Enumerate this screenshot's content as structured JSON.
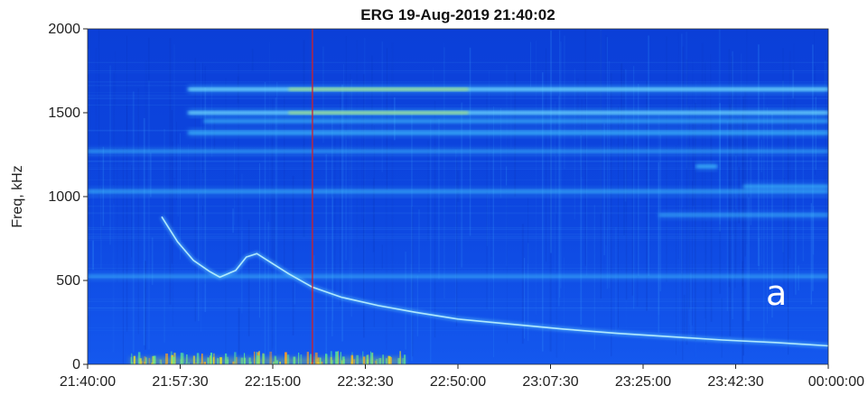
{
  "chart_data": {
    "type": "heatmap",
    "title": "ERG  19-Aug-2019 21:40:02",
    "ylabel": "Freq, kHz",
    "xlabel": "",
    "ylim": [
      0,
      2000
    ],
    "yticks": [
      "0",
      "500",
      "1000",
      "1500",
      "2000"
    ],
    "yticks_values": [
      0,
      500,
      1000,
      1500,
      2000
    ],
    "xticks": [
      "21:40:00",
      "21:57:30",
      "22:15:00",
      "22:32:30",
      "22:50:00",
      "23:07:30",
      "23:25:00",
      "23:42:30",
      "00:00:00"
    ],
    "xlim_minutes": [
      0,
      140
    ],
    "panel_label": "a",
    "marker_line_time": "22:22:30",
    "marker_line_minute": 42.5,
    "colors": {
      "background": "#0b3fd8",
      "band": "#45c8ff",
      "band_hot": "#d8ff30",
      "marker": "#d0202a"
    },
    "bands": [
      {
        "freq": 1640,
        "start_min": 19,
        "end_min": 140,
        "intensity": 0.9
      },
      {
        "freq": 1500,
        "start_min": 19,
        "end_min": 140,
        "intensity": 0.85
      },
      {
        "freq": 1450,
        "start_min": 22,
        "end_min": 140,
        "intensity": 0.6
      },
      {
        "freq": 1380,
        "start_min": 19,
        "end_min": 140,
        "intensity": 0.7
      },
      {
        "freq": 1270,
        "start_min": 0,
        "end_min": 140,
        "intensity": 0.45
      },
      {
        "freq": 1030,
        "start_min": 0,
        "end_min": 140,
        "intensity": 0.55
      },
      {
        "freq": 1060,
        "start_min": 124,
        "end_min": 140,
        "intensity": 0.6
      },
      {
        "freq": 1180,
        "start_min": 115,
        "end_min": 119,
        "intensity": 0.7
      },
      {
        "freq": 890,
        "start_min": 108,
        "end_min": 140,
        "intensity": 0.5
      },
      {
        "freq": 525,
        "start_min": 0,
        "end_min": 140,
        "intensity": 0.45
      }
    ],
    "emission_trace": {
      "name": "",
      "x_min": [
        14,
        17,
        20,
        23,
        25,
        28,
        30,
        32,
        35,
        38,
        42.5,
        48,
        55,
        62,
        70,
        80,
        90,
        100,
        110,
        120,
        130,
        140
      ],
      "y_khz": [
        880,
        730,
        620,
        555,
        520,
        560,
        640,
        660,
        600,
        540,
        460,
        400,
        350,
        310,
        270,
        240,
        210,
        185,
        165,
        145,
        130,
        110
      ]
    },
    "low_freq_emission": {
      "start_min": 8,
      "end_min": 60,
      "max_khz": 80
    }
  }
}
